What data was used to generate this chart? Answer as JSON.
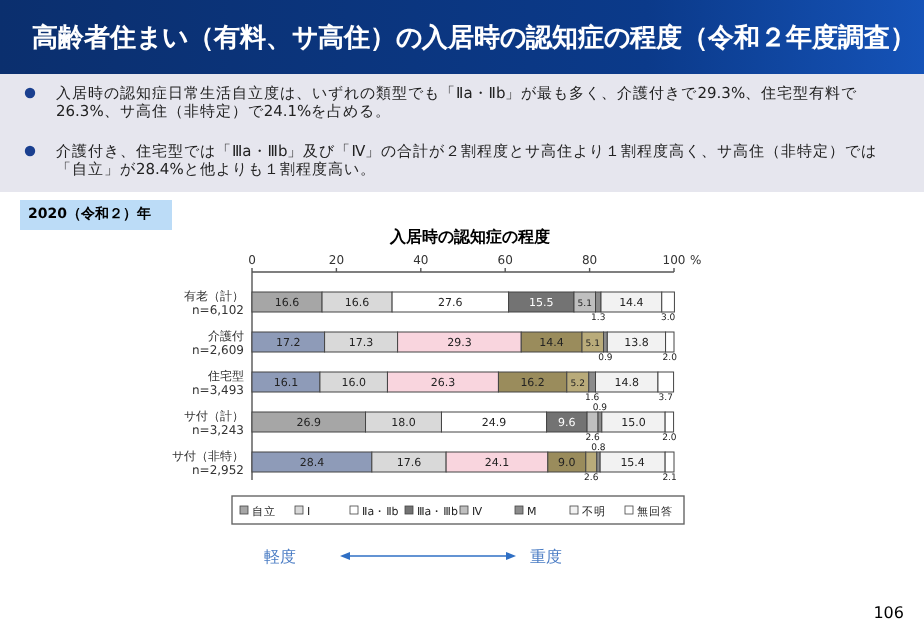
{
  "chart_data": {
    "type": "bar",
    "orientation": "horizontal",
    "stacked": true,
    "title": "高齢者住まい（有料、サ高住）の入居時の認知症の程度（令和２年度調査）",
    "subtitle": "入居時の認知症の程度",
    "annotations": [
      "入居時の認知症日常生活自立度は、いずれの類型でも「Ⅱa・Ⅱb」が最も多く、介護付きで29.3%、住宅型有料で26.3%、サ高住（非特定）で24.1%を占める。",
      "介護付き、住宅型では「Ⅲa・Ⅲb」及び「Ⅳ」の合計が２割程度とサ高住より１割程度高く、サ高住（非特定）では「自立」が28.4%と他よりも１割程度高い。",
      "2020（令和２）年",
      "軽度",
      "重度",
      "106"
    ],
    "categories": [
      "有老（計）\nn=6,102",
      "介護付\nn=2,609",
      "住宅型\nn=3,493",
      "サ付（計）\nn=3,243",
      "サ付（非特）\nn=2,952"
    ],
    "series": [
      {
        "name": "自立",
        "color": "#a6a6a6",
        "colors": [
          "#a6a6a6",
          "#8e9bb8",
          "#8e9bb8",
          "#a6a6a6",
          "#8e9bb8"
        ],
        "values": [
          16.6,
          17.2,
          16.1,
          26.9,
          28.4
        ],
        "value_labels": [
          "16.6",
          "17.2",
          "16.1",
          "26.9",
          "28.4"
        ]
      },
      {
        "name": "Ⅰ",
        "color": "#d9d9d9",
        "values": [
          16.6,
          17.3,
          16.0,
          18.0,
          17.6
        ],
        "value_labels": [
          "16.6",
          "17.3",
          "16.0",
          "18.0",
          "17.6"
        ]
      },
      {
        "name": "Ⅱa・Ⅱb",
        "color": "#ffffff",
        "colors": [
          "#ffffff",
          "#f9d5de",
          "#f9d5de",
          "#ffffff",
          "#f9d5de"
        ],
        "values": [
          27.6,
          29.3,
          26.3,
          24.9,
          24.1
        ],
        "value_labels": [
          "27.6",
          "29.3",
          "26.3",
          "24.9",
          "24.1"
        ]
      },
      {
        "name": "Ⅲa・Ⅲb",
        "color": "#737373",
        "colors": [
          "#737373",
          "#9a8c5c",
          "#9a8c5c",
          "#737373",
          "#9a8c5c"
        ],
        "values": [
          15.5,
          14.4,
          16.2,
          9.6,
          9.0
        ],
        "value_labels": [
          "15.5",
          "14.4",
          "16.2",
          "9.6",
          "9.0"
        ]
      },
      {
        "name": "Ⅳ",
        "color": "#bfbfbf",
        "colors": [
          "#bfbfbf",
          "#b9ab7a",
          "#b9ab7a",
          "#bfbfbf",
          "#b9ab7a"
        ],
        "values": [
          5.1,
          5.1,
          5.2,
          2.6,
          2.6
        ],
        "value_labels": [
          "5.1",
          "5.1",
          "5.2",
          "2.6",
          "2.6"
        ]
      },
      {
        "name": "M",
        "color": "#8c8c8c",
        "values": [
          1.3,
          0.9,
          1.6,
          0.9,
          0.8
        ],
        "value_labels": [
          "1.3",
          "0.9",
          "1.6",
          "0.9",
          "0.8"
        ]
      },
      {
        "name": "不明",
        "color": "#f2f2f2",
        "values": [
          14.4,
          13.8,
          14.8,
          15.0,
          15.4
        ],
        "value_labels": [
          "14.4",
          "13.8",
          "14.8",
          "15.0",
          "15.4"
        ]
      },
      {
        "name": "無回答",
        "color": "#ffffff",
        "values": [
          3.0,
          2.0,
          3.7,
          2.0,
          2.1
        ],
        "value_labels": [
          "3.0",
          "2.0",
          "3.7",
          "2.0",
          "2.1"
        ]
      }
    ],
    "xlim": [
      0,
      100
    ],
    "xticks": [
      0,
      20,
      40,
      60,
      80,
      100
    ],
    "xlabel": "%",
    "legend": "bottom"
  }
}
